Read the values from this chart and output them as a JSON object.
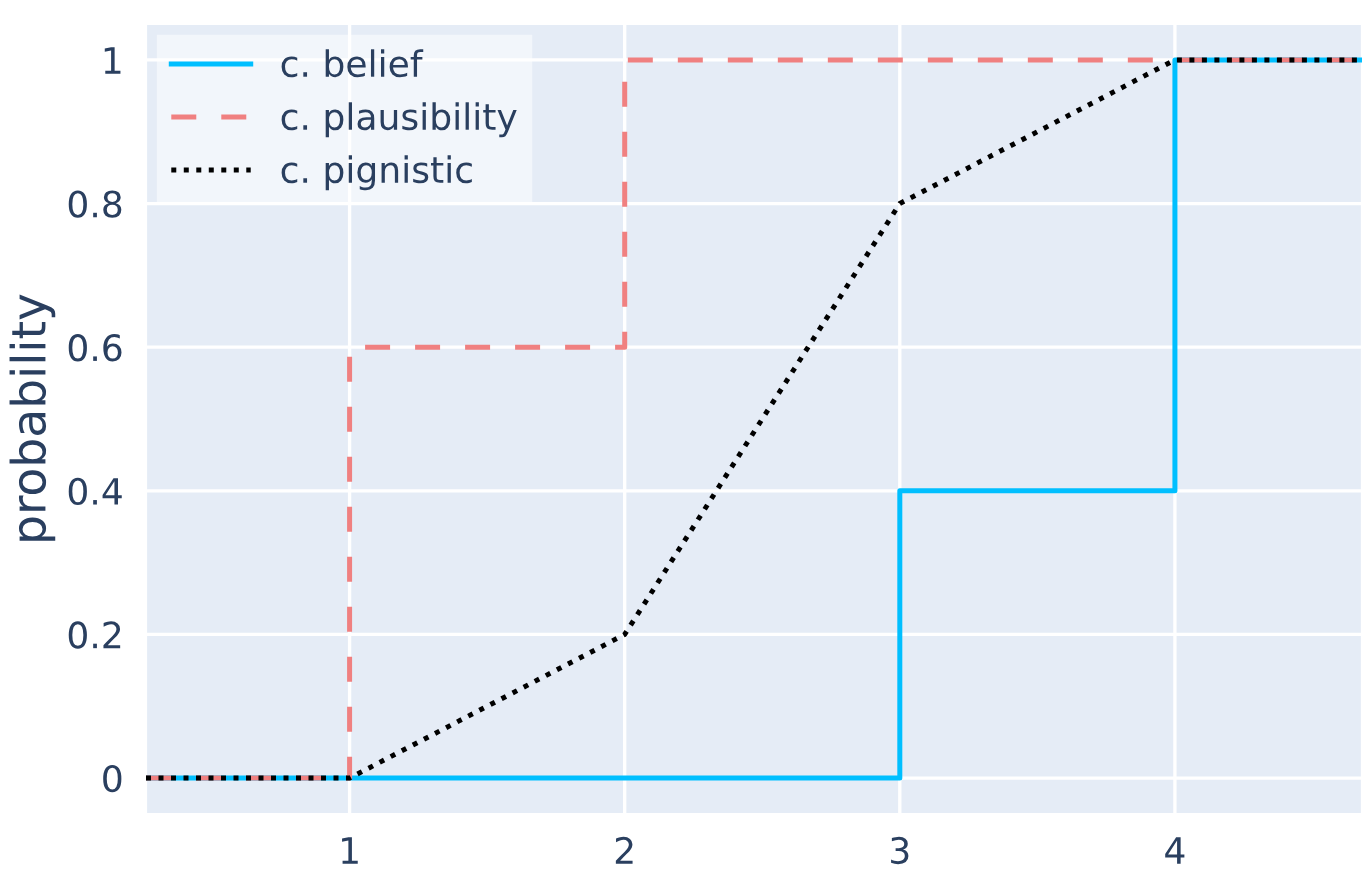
{
  "chart_data": {
    "type": "step",
    "ylabel": "probability",
    "x": [
      0.26,
      1,
      2,
      3,
      4,
      4.68
    ],
    "series": [
      {
        "name": "c. belief",
        "color": "#00bfff",
        "values": [
          0,
          0,
          0,
          0.4,
          1,
          1
        ],
        "line_style": "solid"
      },
      {
        "name": "c. plausibility",
        "color": "#f08080",
        "values": [
          0,
          0.6,
          1,
          1,
          1,
          1
        ],
        "line_style": "dashed"
      },
      {
        "name": "c. pignistic",
        "color": "#000000",
        "values": [
          0,
          0,
          0.2,
          0.8,
          1,
          1
        ],
        "line_style": "dotted",
        "type": "line"
      }
    ],
    "xlim": [
      0.26,
      4.68
    ],
    "xticks": [
      1,
      2,
      3,
      4
    ],
    "ylim": [
      -0.05,
      1.05
    ],
    "yticks": [
      0,
      0.2,
      0.4,
      0.6,
      0.8,
      1
    ],
    "grid": true,
    "legend": "top left"
  }
}
